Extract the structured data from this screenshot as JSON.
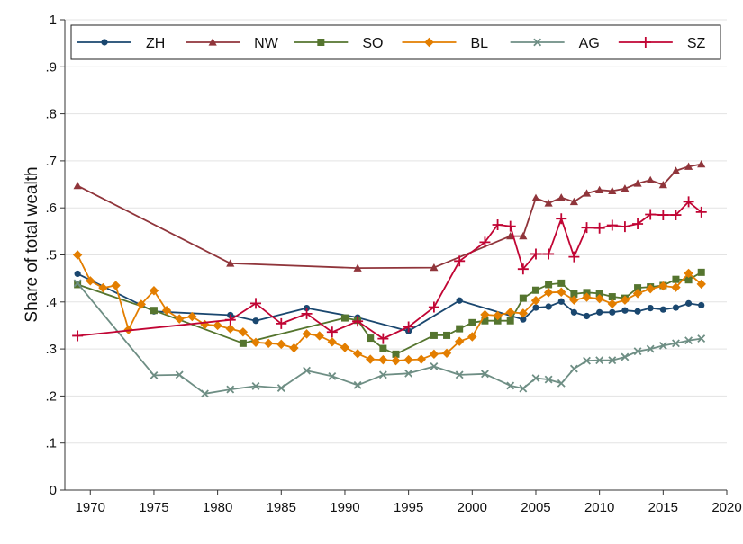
{
  "chart_data": {
    "type": "line",
    "title": "",
    "xlabel": "",
    "ylabel": "Share of total wealth",
    "xlim": [
      1968,
      2020
    ],
    "ylim": [
      0,
      1
    ],
    "x_ticks": [
      1970,
      1975,
      1980,
      1985,
      1990,
      1995,
      2000,
      2005,
      2010,
      2015,
      2020
    ],
    "y_ticks": [
      0,
      0.1,
      0.2,
      0.3,
      0.4,
      0.5,
      0.6,
      0.7,
      0.8,
      0.9,
      1
    ],
    "y_tick_labels": [
      "0",
      ".1",
      ".2",
      ".3",
      ".4",
      ".5",
      ".6",
      ".7",
      ".8",
      ".9",
      "1"
    ],
    "grid": true,
    "legend_position": "top",
    "series": [
      {
        "name": "ZH",
        "color": "#1a476f",
        "marker": "circle",
        "x": [
          1969,
          1975,
          1981,
          1983,
          1987,
          1991,
          1995,
          1999,
          2004,
          2005,
          2006,
          2007,
          2008,
          2009,
          2010,
          2011,
          2012,
          2013,
          2014,
          2015,
          2016,
          2017,
          2018
        ],
        "y": [
          0.46,
          0.38,
          0.372,
          0.36,
          0.387,
          0.367,
          0.338,
          0.403,
          0.363,
          0.388,
          0.39,
          0.401,
          0.378,
          0.37,
          0.378,
          0.378,
          0.382,
          0.38,
          0.387,
          0.384,
          0.388,
          0.397,
          0.393
        ]
      },
      {
        "name": "NW",
        "color": "#90353b",
        "marker": "triangle",
        "x": [
          1969,
          1981,
          1991,
          1997,
          2003,
          2004,
          2005,
          2006,
          2007,
          2008,
          2009,
          2010,
          2011,
          2012,
          2013,
          2014,
          2015,
          2016,
          2017,
          2018
        ],
        "y": [
          0.647,
          0.482,
          0.472,
          0.473,
          0.54,
          0.54,
          0.621,
          0.61,
          0.622,
          0.613,
          0.631,
          0.638,
          0.636,
          0.641,
          0.652,
          0.659,
          0.649,
          0.679,
          0.688,
          0.693
        ]
      },
      {
        "name": "SO",
        "color": "#55752f",
        "marker": "square",
        "x": [
          1969,
          1975,
          1982,
          1990,
          1991,
          1992,
          1993,
          1994,
          1997,
          1998,
          1999,
          2000,
          2001,
          2002,
          2003,
          2004,
          2005,
          2006,
          2007,
          2008,
          2009,
          2010,
          2011,
          2012,
          2013,
          2014,
          2015,
          2016,
          2017,
          2018
        ],
        "y": [
          0.437,
          0.382,
          0.312,
          0.366,
          0.361,
          0.323,
          0.301,
          0.289,
          0.329,
          0.329,
          0.343,
          0.356,
          0.36,
          0.36,
          0.36,
          0.408,
          0.425,
          0.437,
          0.44,
          0.417,
          0.42,
          0.418,
          0.411,
          0.408,
          0.43,
          0.432,
          0.435,
          0.448,
          0.447,
          0.463
        ]
      },
      {
        "name": "BL",
        "color": "#e37e00",
        "marker": "diamond",
        "x": [
          1969,
          1970,
          1971,
          1972,
          1973,
          1974,
          1975,
          1976,
          1977,
          1978,
          1979,
          1980,
          1981,
          1982,
          1983,
          1984,
          1985,
          1986,
          1987,
          1988,
          1989,
          1990,
          1991,
          1992,
          1993,
          1994,
          1995,
          1996,
          1997,
          1998,
          1999,
          2000,
          2001,
          2002,
          2003,
          2004,
          2005,
          2006,
          2007,
          2008,
          2009,
          2010,
          2011,
          2012,
          2013,
          2014,
          2015,
          2016,
          2017,
          2018
        ],
        "y": [
          0.5,
          0.445,
          0.43,
          0.435,
          0.341,
          0.395,
          0.424,
          0.382,
          0.364,
          0.369,
          0.352,
          0.35,
          0.343,
          0.336,
          0.314,
          0.312,
          0.31,
          0.302,
          0.332,
          0.328,
          0.315,
          0.303,
          0.29,
          0.278,
          0.277,
          0.275,
          0.277,
          0.278,
          0.289,
          0.291,
          0.316,
          0.326,
          0.373,
          0.371,
          0.378,
          0.376,
          0.403,
          0.42,
          0.421,
          0.404,
          0.41,
          0.407,
          0.396,
          0.404,
          0.418,
          0.428,
          0.434,
          0.431,
          0.461,
          0.438
        ]
      },
      {
        "name": "AG",
        "color": "#6e8e84",
        "marker": "x",
        "x": [
          1969,
          1975,
          1977,
          1979,
          1981,
          1983,
          1985,
          1987,
          1989,
          1991,
          1993,
          1995,
          1997,
          1999,
          2001,
          2003,
          2004,
          2005,
          2006,
          2007,
          2008,
          2009,
          2010,
          2011,
          2012,
          2013,
          2014,
          2015,
          2016,
          2017,
          2018
        ],
        "y": [
          0.44,
          0.244,
          0.245,
          0.205,
          0.214,
          0.221,
          0.217,
          0.254,
          0.242,
          0.223,
          0.245,
          0.248,
          0.263,
          0.245,
          0.247,
          0.222,
          0.216,
          0.238,
          0.235,
          0.227,
          0.258,
          0.275,
          0.276,
          0.276,
          0.283,
          0.295,
          0.3,
          0.307,
          0.312,
          0.318,
          0.322
        ]
      },
      {
        "name": "SZ",
        "color": "#c10534",
        "marker": "plus",
        "x": [
          1969,
          1981,
          1983,
          1985,
          1987,
          1989,
          1991,
          1993,
          1995,
          1997,
          1999,
          2001,
          2002,
          2003,
          2004,
          2005,
          2006,
          2007,
          2008,
          2009,
          2010,
          2011,
          2012,
          2013,
          2014,
          2015,
          2016,
          2017,
          2018
        ],
        "y": [
          0.328,
          0.362,
          0.397,
          0.354,
          0.375,
          0.336,
          0.359,
          0.322,
          0.347,
          0.389,
          0.487,
          0.527,
          0.564,
          0.561,
          0.47,
          0.502,
          0.502,
          0.577,
          0.496,
          0.558,
          0.557,
          0.563,
          0.56,
          0.566,
          0.586,
          0.585,
          0.585,
          0.613,
          0.591
        ]
      }
    ]
  }
}
